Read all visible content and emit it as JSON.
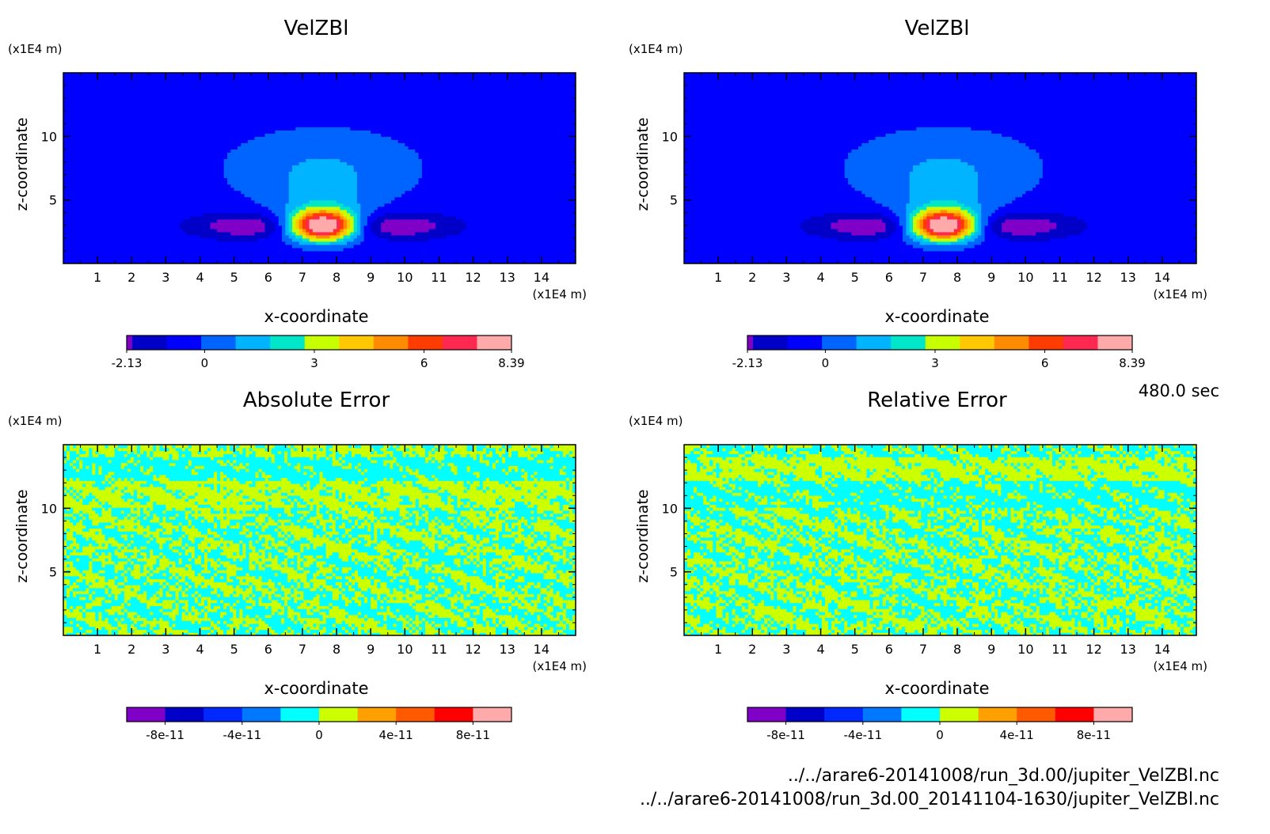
{
  "time_label": "480.0 sec",
  "file_paths": [
    "../../arare6-20141008/run_3d.00/jupiter_VelZBl.nc",
    "../../arare6-20141008/run_3d.00_20141104-1630/jupiter_VelZBl.nc"
  ],
  "chart_data": [
    {
      "type": "heatmap",
      "title": "VelZBl",
      "xlabel": "x-coordinate",
      "ylabel": "z-coordinate",
      "x_unit": "(x1E4 m)",
      "y_unit": "(x1E4 m)",
      "xlim": [
        0,
        15
      ],
      "ylim": [
        0,
        15
      ],
      "xticks": [
        1,
        2,
        3,
        4,
        5,
        6,
        7,
        8,
        9,
        10,
        11,
        12,
        13,
        14
      ],
      "yticks": [
        5,
        10
      ],
      "field": "velocity",
      "colorbar": {
        "min": -2.13,
        "max": 8.39,
        "tick_labels": [
          "-2.13",
          "0",
          "3",
          "6",
          "8.39"
        ],
        "tick_values": [
          -2.13,
          0,
          3,
          6,
          8.39
        ],
        "colors": [
          "#8000c8",
          "#0000c8",
          "#0000ff",
          "#0064ff",
          "#00b4ff",
          "#00e6c8",
          "#c8ff00",
          "#ffc800",
          "#ff8c00",
          "#ff3c00",
          "#ff2850",
          "#ffaaaa"
        ]
      },
      "background_value": 0
    },
    {
      "type": "heatmap",
      "title": "VelZBl",
      "xlabel": "x-coordinate",
      "ylabel": "z-coordinate",
      "x_unit": "(x1E4 m)",
      "y_unit": "(x1E4 m)",
      "xlim": [
        0,
        15
      ],
      "ylim": [
        0,
        15
      ],
      "xticks": [
        1,
        2,
        3,
        4,
        5,
        6,
        7,
        8,
        9,
        10,
        11,
        12,
        13,
        14
      ],
      "yticks": [
        5,
        10
      ],
      "field": "velocity",
      "colorbar": {
        "min": -2.13,
        "max": 8.39,
        "tick_labels": [
          "-2.13",
          "0",
          "3",
          "6",
          "8.39"
        ],
        "tick_values": [
          -2.13,
          0,
          3,
          6,
          8.39
        ],
        "colors": [
          "#8000c8",
          "#0000c8",
          "#0000ff",
          "#0064ff",
          "#00b4ff",
          "#00e6c8",
          "#c8ff00",
          "#ffc800",
          "#ff8c00",
          "#ff3c00",
          "#ff2850",
          "#ffaaaa"
        ]
      },
      "background_value": 0
    },
    {
      "type": "heatmap",
      "title": "Absolute Error",
      "xlabel": "x-coordinate",
      "ylabel": "z-coordinate",
      "x_unit": "(x1E4 m)",
      "y_unit": "(x1E4 m)",
      "xlim": [
        0,
        15
      ],
      "ylim": [
        0,
        15
      ],
      "xticks": [
        1,
        2,
        3,
        4,
        5,
        6,
        7,
        8,
        9,
        10,
        11,
        12,
        13,
        14
      ],
      "yticks": [
        5,
        10
      ],
      "field": "noise",
      "noise_colors": [
        "#00ffff",
        "#ccff00"
      ],
      "colorbar": {
        "min": -1e-10,
        "max": 1e-10,
        "tick_labels": [
          "-8e-11",
          "-4e-11",
          "0",
          "4e-11",
          "8e-11"
        ],
        "tick_values": [
          -8e-11,
          -4e-11,
          0,
          4e-11,
          8e-11
        ],
        "colors": [
          "#8000c8",
          "#0000c8",
          "#0028ff",
          "#0078ff",
          "#00ffff",
          "#ccff00",
          "#ffa000",
          "#ff5a00",
          "#ff0000",
          "#ffaaaa"
        ]
      }
    },
    {
      "type": "heatmap",
      "title": "Relative Error",
      "xlabel": "x-coordinate",
      "ylabel": "z-coordinate",
      "x_unit": "(x1E4 m)",
      "y_unit": "(x1E4 m)",
      "xlim": [
        0,
        15
      ],
      "ylim": [
        0,
        15
      ],
      "xticks": [
        1,
        2,
        3,
        4,
        5,
        6,
        7,
        8,
        9,
        10,
        11,
        12,
        13,
        14
      ],
      "yticks": [
        5,
        10
      ],
      "field": "noise",
      "noise_colors": [
        "#ccff00",
        "#00ffff"
      ],
      "colorbar": {
        "min": -1e-10,
        "max": 1e-10,
        "tick_labels": [
          "-8e-11",
          "-4e-11",
          "0",
          "4e-11",
          "8e-11"
        ],
        "tick_values": [
          -8e-11,
          -4e-11,
          0,
          4e-11,
          8e-11
        ],
        "colors": [
          "#8000c8",
          "#0000c8",
          "#0028ff",
          "#0078ff",
          "#00ffff",
          "#ccff00",
          "#ffa000",
          "#ff5a00",
          "#ff0000",
          "#ffaaaa"
        ]
      }
    }
  ]
}
